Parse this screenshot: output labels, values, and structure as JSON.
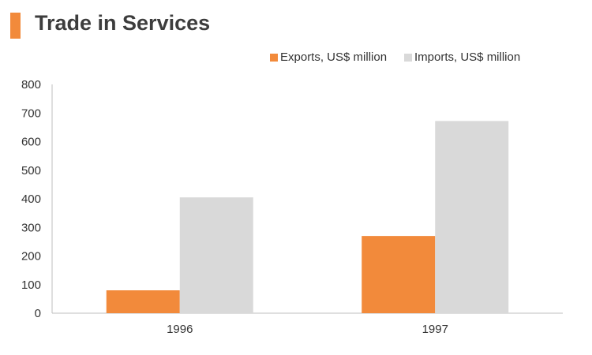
{
  "title": "Trade in Services",
  "colors": {
    "accent": "#f28a3b",
    "exports": "#f28a3b",
    "imports": "#d9d9d9",
    "axis": "#bfbfbf"
  },
  "legend": [
    {
      "label": "Exports, US$ million"
    },
    {
      "label": "Imports, US$ million"
    }
  ],
  "chart_data": {
    "type": "bar",
    "categories": [
      "1996",
      "1997"
    ],
    "series": [
      {
        "name": "Exports, US$ million",
        "values": [
          80,
          270
        ]
      },
      {
        "name": "Imports, US$ million",
        "values": [
          405,
          672
        ]
      }
    ],
    "ylim": [
      0,
      800
    ],
    "yticks": [
      "0",
      "100",
      "200",
      "300",
      "400",
      "500",
      "600",
      "700",
      "800"
    ],
    "grid": false,
    "legend_position": "top-right"
  }
}
